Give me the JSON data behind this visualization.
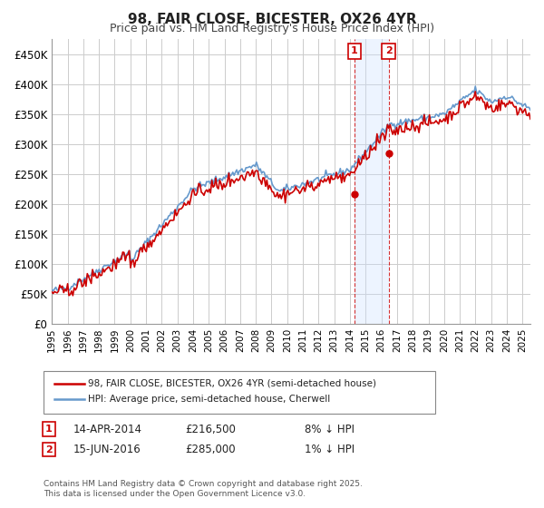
{
  "title1": "98, FAIR CLOSE, BICESTER, OX26 4YR",
  "title2": "Price paid vs. HM Land Registry's House Price Index (HPI)",
  "ylabel_ticks": [
    "£0",
    "£50K",
    "£100K",
    "£150K",
    "£200K",
    "£250K",
    "£300K",
    "£350K",
    "£400K",
    "£450K"
  ],
  "ytick_vals": [
    0,
    50000,
    100000,
    150000,
    200000,
    250000,
    300000,
    350000,
    400000,
    450000
  ],
  "ylim": [
    0,
    475000
  ],
  "x_start_year": 1995,
  "x_end_year": 2025,
  "legend1_label": "98, FAIR CLOSE, BICESTER, OX26 4YR (semi-detached house)",
  "legend2_label": "HPI: Average price, semi-detached house, Cherwell",
  "marker1_date": 2014.29,
  "marker1_price": 216500,
  "marker1_label": "14-APR-2014",
  "marker1_pct": "8% ↓ HPI",
  "marker2_date": 2016.46,
  "marker2_price": 285000,
  "marker2_label": "15-JUN-2016",
  "marker2_pct": "1% ↓ HPI",
  "hpi_color": "#6699cc",
  "price_color": "#cc0000",
  "marker_box_color": "#cc0000",
  "shade_color": "#cce0ff",
  "footer_text": "Contains HM Land Registry data © Crown copyright and database right 2025.\nThis data is licensed under the Open Government Licence v3.0.",
  "background_color": "#ffffff",
  "grid_color": "#cccccc"
}
